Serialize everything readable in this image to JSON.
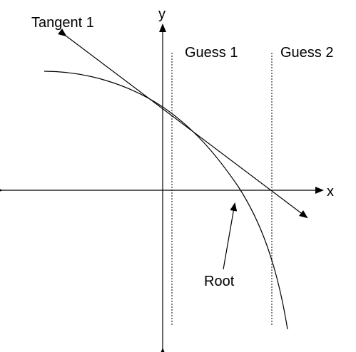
{
  "labels": {
    "y_axis": "y",
    "x_axis": "x",
    "tangent": "Tangent 1",
    "guess_1": "Guess 1",
    "guess_2": "Guess 2",
    "root": "Root"
  }
}
